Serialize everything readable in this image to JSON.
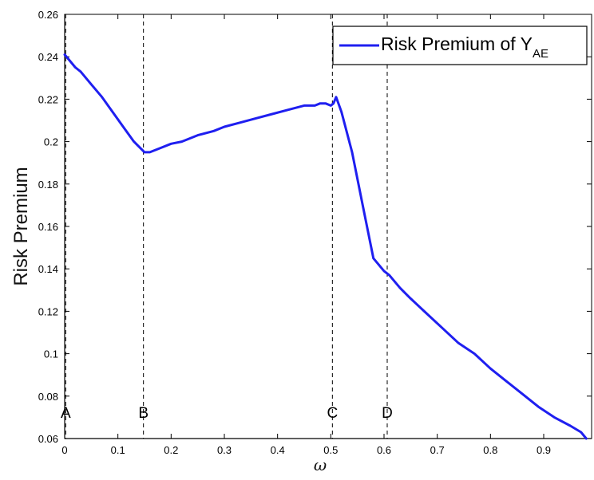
{
  "chart_data": {
    "type": "line",
    "title": "",
    "xlabel": "ω",
    "ylabel": "Risk Premium",
    "xlim": [
      0,
      0.99
    ],
    "ylim": [
      0.06,
      0.26
    ],
    "xticks": [
      0,
      0.1,
      0.2,
      0.3,
      0.4,
      0.5,
      0.6,
      0.7,
      0.8,
      0.9
    ],
    "xtick_labels": [
      "0",
      "0.1",
      "0.2",
      "0.3",
      "0.4",
      "0.5",
      "0.6",
      "0.7",
      "0.8",
      "0.9"
    ],
    "yticks": [
      0.06,
      0.08,
      0.1,
      0.12,
      0.14,
      0.16,
      0.18,
      0.2,
      0.22,
      0.24,
      0.26
    ],
    "ytick_labels": [
      "0.06",
      "0.08",
      "0.1",
      "0.12",
      "0.14",
      "0.16",
      "0.18",
      "0.2",
      "0.22",
      "0.24",
      "0.26"
    ],
    "grid": false,
    "legend_position": "top-right",
    "series": [
      {
        "name": "Risk Premium of Y_AE",
        "legend_main": "Risk Premium of Y",
        "legend_sub": "AE",
        "color": "#1f1ff0",
        "x": [
          0,
          0.01,
          0.02,
          0.03,
          0.05,
          0.07,
          0.09,
          0.11,
          0.13,
          0.15,
          0.16,
          0.18,
          0.2,
          0.22,
          0.25,
          0.28,
          0.3,
          0.33,
          0.36,
          0.39,
          0.42,
          0.45,
          0.47,
          0.48,
          0.49,
          0.5,
          0.505,
          0.51,
          0.52,
          0.54,
          0.56,
          0.58,
          0.6,
          0.61,
          0.63,
          0.65,
          0.68,
          0.71,
          0.74,
          0.77,
          0.8,
          0.83,
          0.86,
          0.89,
          0.92,
          0.95,
          0.97,
          0.98
        ],
        "y": [
          0.241,
          0.238,
          0.235,
          0.233,
          0.227,
          0.221,
          0.214,
          0.207,
          0.2,
          0.195,
          0.195,
          0.197,
          0.199,
          0.2,
          0.203,
          0.205,
          0.207,
          0.209,
          0.211,
          0.213,
          0.215,
          0.217,
          0.217,
          0.218,
          0.218,
          0.217,
          0.218,
          0.221,
          0.214,
          0.195,
          0.17,
          0.145,
          0.139,
          0.137,
          0.131,
          0.126,
          0.119,
          0.112,
          0.105,
          0.1,
          0.093,
          0.087,
          0.081,
          0.075,
          0.07,
          0.066,
          0.063,
          0.06
        ]
      }
    ],
    "reference_lines": [
      {
        "label": "A",
        "x": 0.002
      },
      {
        "label": "B",
        "x": 0.148
      },
      {
        "label": "C",
        "x": 0.503
      },
      {
        "label": "D",
        "x": 0.606
      }
    ]
  }
}
